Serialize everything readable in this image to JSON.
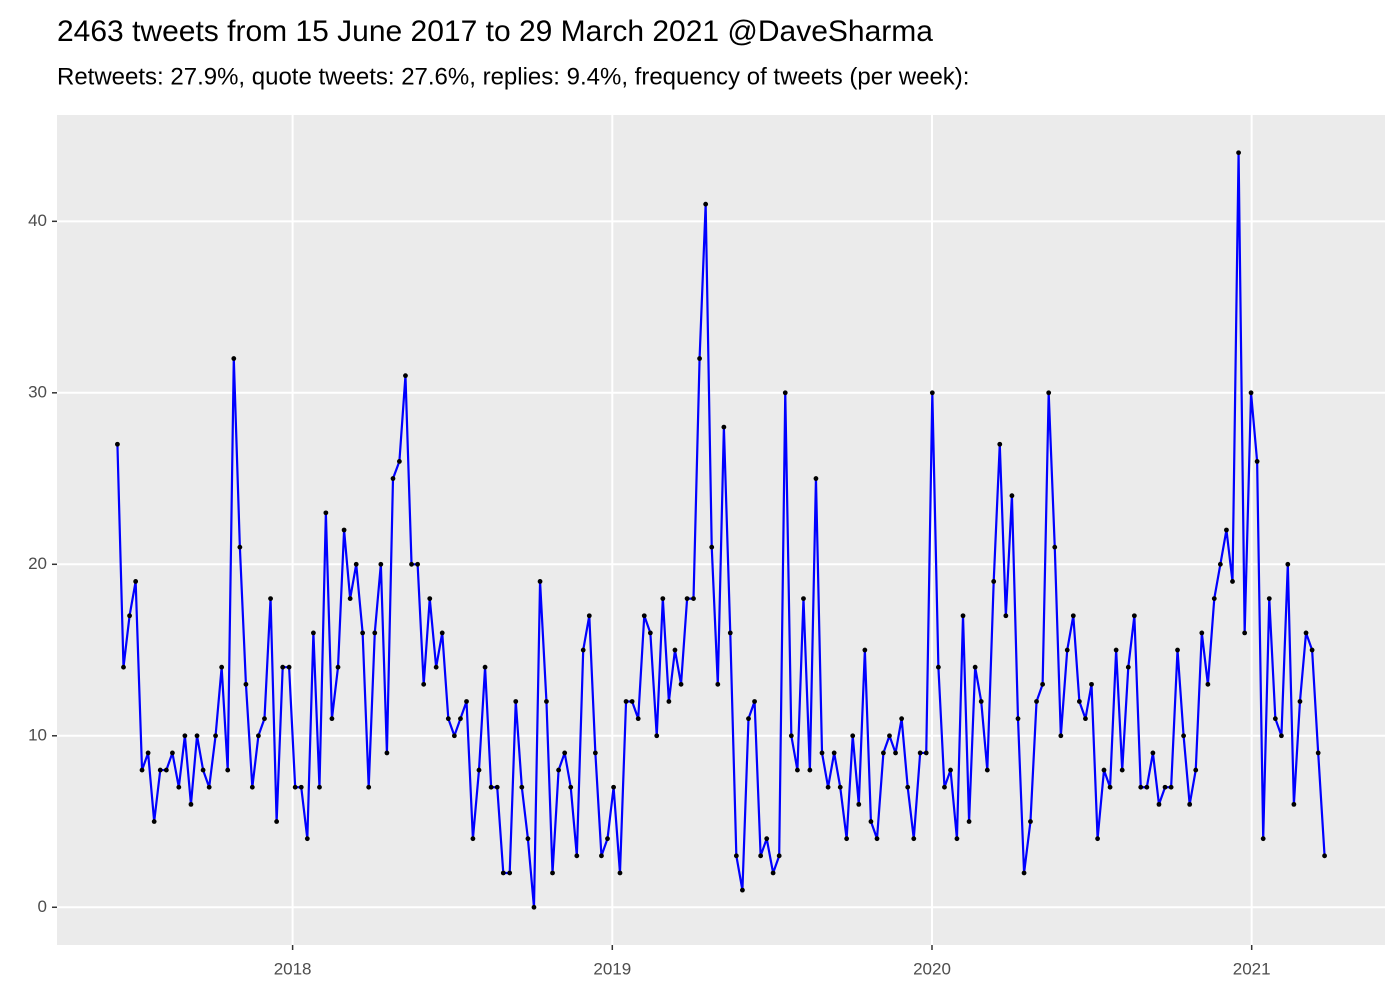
{
  "chart_data": {
    "type": "line",
    "title": "2463 tweets from 15 June 2017 to 29 March 2021 @DaveSharma",
    "subtitle": "Retweets: 27.9%, quote tweets: 27.6%, replies: 9.4%, frequency of tweets (per week):",
    "color": "#0000ff",
    "point_color": "#000000",
    "grid": true,
    "xlim": [
      2017.263,
      2021.417
    ],
    "xticks": [
      2018,
      2019,
      2020,
      2021
    ],
    "ylim": [
      -2.2,
      46.2
    ],
    "yticks": [
      0,
      10,
      20,
      30,
      40
    ],
    "x": [
      2017.452,
      2017.471,
      2017.49,
      2017.509,
      2017.529,
      2017.548,
      2017.567,
      2017.586,
      2017.605,
      2017.624,
      2017.644,
      2017.663,
      2017.682,
      2017.701,
      2017.72,
      2017.739,
      2017.759,
      2017.778,
      2017.797,
      2017.816,
      2017.835,
      2017.854,
      2017.874,
      2017.893,
      2017.912,
      2017.931,
      2017.95,
      2017.969,
      2017.989,
      2018.008,
      2018.027,
      2018.046,
      2018.065,
      2018.084,
      2018.104,
      2018.123,
      2018.142,
      2018.161,
      2018.18,
      2018.199,
      2018.219,
      2018.238,
      2018.257,
      2018.276,
      2018.295,
      2018.314,
      2018.334,
      2018.353,
      2018.372,
      2018.391,
      2018.41,
      2018.429,
      2018.449,
      2018.468,
      2018.487,
      2018.506,
      2018.525,
      2018.544,
      2018.564,
      2018.583,
      2018.602,
      2018.621,
      2018.64,
      2018.659,
      2018.679,
      2018.698,
      2018.717,
      2018.736,
      2018.755,
      2018.774,
      2018.794,
      2018.813,
      2018.832,
      2018.851,
      2018.87,
      2018.889,
      2018.909,
      2018.928,
      2018.947,
      2018.966,
      2018.985,
      2019.004,
      2019.024,
      2019.043,
      2019.062,
      2019.081,
      2019.1,
      2019.119,
      2019.139,
      2019.158,
      2019.177,
      2019.196,
      2019.215,
      2019.234,
      2019.254,
      2019.273,
      2019.292,
      2019.311,
      2019.33,
      2019.349,
      2019.369,
      2019.388,
      2019.407,
      2019.426,
      2019.445,
      2019.464,
      2019.483,
      2019.503,
      2019.522,
      2019.541,
      2019.56,
      2019.579,
      2019.598,
      2019.618,
      2019.637,
      2019.656,
      2019.675,
      2019.694,
      2019.713,
      2019.733,
      2019.752,
      2019.771,
      2019.79,
      2019.809,
      2019.828,
      2019.848,
      2019.867,
      2019.886,
      2019.905,
      2019.924,
      2019.943,
      2019.963,
      2019.982,
      2020.001,
      2020.02,
      2020.039,
      2020.058,
      2020.078,
      2020.097,
      2020.116,
      2020.135,
      2020.154,
      2020.173,
      2020.193,
      2020.212,
      2020.231,
      2020.25,
      2020.269,
      2020.288,
      2020.308,
      2020.327,
      2020.346,
      2020.365,
      2020.384,
      2020.403,
      2020.423,
      2020.442,
      2020.461,
      2020.48,
      2020.499,
      2020.518,
      2020.538,
      2020.557,
      2020.576,
      2020.595,
      2020.614,
      2020.633,
      2020.653,
      2020.672,
      2020.691,
      2020.71,
      2020.729,
      2020.748,
      2020.768,
      2020.787,
      2020.806,
      2020.825,
      2020.844,
      2020.863,
      2020.883,
      2020.902,
      2020.921,
      2020.94,
      2020.959,
      2020.978,
      2020.998,
      2021.017,
      2021.036,
      2021.055,
      2021.074,
      2021.093,
      2021.113,
      2021.132,
      2021.151,
      2021.17,
      2021.189,
      2021.208,
      2021.228
    ],
    "values": [
      27,
      14,
      17,
      19,
      8,
      9,
      5,
      8,
      8,
      9,
      7,
      10,
      6,
      10,
      8,
      7,
      10,
      14,
      8,
      32,
      21,
      13,
      7,
      10,
      11,
      18,
      5,
      14,
      14,
      7,
      7,
      4,
      16,
      7,
      23,
      11,
      14,
      22,
      18,
      20,
      16,
      7,
      16,
      20,
      9,
      25,
      26,
      31,
      20,
      20,
      13,
      18,
      14,
      16,
      11,
      10,
      11,
      12,
      4,
      8,
      14,
      7,
      7,
      2,
      2,
      12,
      7,
      4,
      0,
      19,
      12,
      2,
      8,
      9,
      7,
      3,
      15,
      17,
      9,
      3,
      4,
      7,
      2,
      12,
      12,
      11,
      17,
      16,
      10,
      18,
      12,
      15,
      13,
      18,
      18,
      32,
      41,
      21,
      13,
      28,
      16,
      3,
      1,
      11,
      12,
      3,
      4,
      2,
      3,
      30,
      10,
      8,
      18,
      8,
      25,
      9,
      7,
      9,
      7,
      4,
      10,
      6,
      15,
      5,
      4,
      9,
      10,
      9,
      11,
      7,
      4,
      9,
      9,
      30,
      14,
      7,
      8,
      4,
      17,
      5,
      14,
      12,
      8,
      19,
      27,
      17,
      24,
      11,
      2,
      5,
      12,
      13,
      30,
      21,
      10,
      15,
      17,
      12,
      11,
      13,
      4,
      8,
      7,
      15,
      8,
      14,
      17,
      7,
      7,
      9,
      6,
      7,
      7,
      15,
      10,
      6,
      8,
      16,
      13,
      18,
      20,
      22,
      19,
      44,
      16,
      30,
      26,
      4,
      18,
      11,
      10,
      20,
      6,
      12,
      16,
      15,
      9,
      3
    ]
  }
}
